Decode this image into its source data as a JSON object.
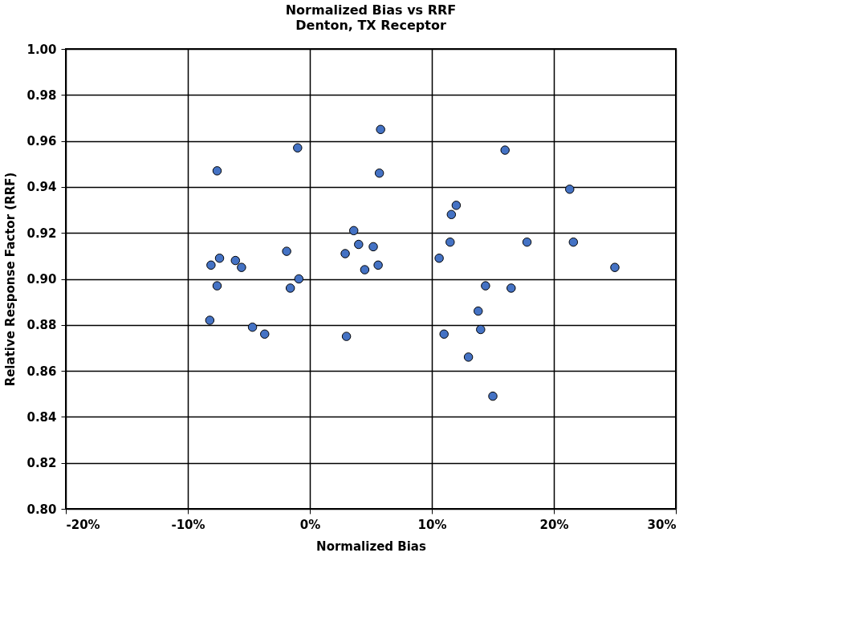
{
  "chart_data": {
    "type": "scatter",
    "title": "Normalized Bias vs RRF",
    "subtitle": "Denton, TX Receptor",
    "xlabel": "Normalized Bias",
    "ylabel": "Relative Response Factor (RRF)",
    "x": [
      5.8,
      -1.0,
      -7.6,
      5.7,
      12.0,
      11.6,
      3.6,
      4.0,
      5.2,
      2.9,
      5.6,
      4.5,
      11.5,
      10.6,
      -1.9,
      -8.1,
      -7.4,
      -6.1,
      -5.6,
      -0.9,
      -1.6,
      -7.6,
      -8.2,
      -4.7,
      -3.7,
      3.0,
      11.0,
      13.0,
      16.0,
      21.3,
      21.6,
      17.8,
      25.0,
      14.4,
      16.5,
      13.8,
      14.0,
      15.0
    ],
    "series": [
      {
        "color": "#4472c4",
        "values": [
          0.965,
          0.957,
          0.947,
          0.946,
          0.932,
          0.928,
          0.921,
          0.915,
          0.914,
          0.911,
          0.906,
          0.904,
          0.916,
          0.909,
          0.912,
          0.906,
          0.909,
          0.908,
          0.905,
          0.9,
          0.896,
          0.897,
          0.882,
          0.879,
          0.876,
          0.875,
          0.876,
          0.866,
          0.956,
          0.939,
          0.916,
          0.916,
          0.905,
          0.897,
          0.896,
          0.886,
          0.878,
          0.849
        ]
      }
    ],
    "xlim": [
      -20,
      30
    ],
    "xticks": [
      {
        "value": -20,
        "label": "-20%"
      },
      {
        "value": -10,
        "label": "-10%"
      },
      {
        "value": 0,
        "label": "0%"
      },
      {
        "value": 10,
        "label": "10%"
      },
      {
        "value": 20,
        "label": "20%"
      },
      {
        "value": 30,
        "label": "30%"
      }
    ],
    "ylim": [
      0.8,
      1.0
    ],
    "yticks": [
      {
        "value": 0.8,
        "label": "0.80"
      },
      {
        "value": 0.82,
        "label": "0.82"
      },
      {
        "value": 0.84,
        "label": "0.84"
      },
      {
        "value": 0.86,
        "label": "0.86"
      },
      {
        "value": 0.88,
        "label": "0.88"
      },
      {
        "value": 0.9,
        "label": "0.90"
      },
      {
        "value": 0.92,
        "label": "0.92"
      },
      {
        "value": 0.94,
        "label": "0.94"
      },
      {
        "value": 0.96,
        "label": "0.96"
      },
      {
        "value": 0.98,
        "label": "0.98"
      },
      {
        "value": 1.0,
        "label": "1.00"
      }
    ],
    "grid": true,
    "marker": "circle"
  }
}
